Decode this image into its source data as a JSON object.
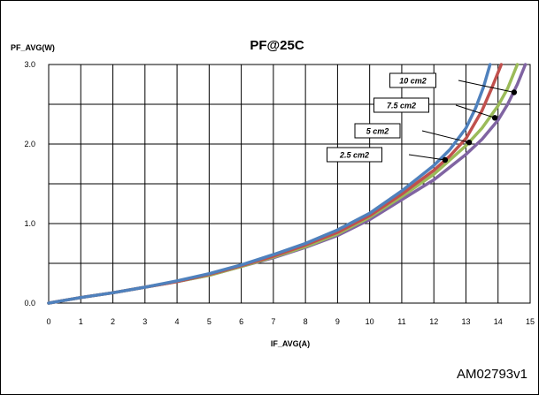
{
  "chart_data": {
    "type": "line",
    "title": "PF@25C",
    "xlabel": "IF_AVG(A)",
    "ylabel": "PF_AVG(W)",
    "xlim": [
      0,
      15
    ],
    "ylim": [
      0,
      3.0
    ],
    "x_ticks": [
      "0",
      "1",
      "2",
      "3",
      "4",
      "5",
      "6",
      "7",
      "8",
      "9",
      "10",
      "11",
      "12",
      "13",
      "14",
      "15"
    ],
    "y_ticks": [
      "0.0",
      "1.0",
      "2.0",
      "3.0"
    ],
    "grid": true,
    "series": [
      {
        "name": "2.5 cm2",
        "color": "#8064a2",
        "x": [
          0,
          1,
          2,
          3,
          4,
          5,
          6,
          7,
          8,
          9,
          10,
          11,
          12,
          13,
          13.5,
          14,
          14.3,
          14.6,
          14.85
        ],
        "y": [
          0,
          0.07,
          0.13,
          0.2,
          0.27,
          0.35,
          0.46,
          0.57,
          0.7,
          0.85,
          1.05,
          1.3,
          1.55,
          1.87,
          2.06,
          2.3,
          2.5,
          2.75,
          3.0
        ]
      },
      {
        "name": "5 cm2",
        "color": "#9bbb59",
        "x": [
          0,
          1,
          2,
          3,
          4,
          5,
          6,
          7,
          8,
          9,
          10,
          11,
          12,
          13,
          13.5,
          14,
          14.3,
          14.6
        ],
        "y": [
          0,
          0.07,
          0.13,
          0.2,
          0.27,
          0.35,
          0.46,
          0.58,
          0.71,
          0.87,
          1.08,
          1.34,
          1.62,
          1.98,
          2.2,
          2.48,
          2.7,
          3.0
        ]
      },
      {
        "name": "7.5 cm2",
        "color": "#c0504d",
        "x": [
          0,
          1,
          2,
          3,
          4,
          5,
          6,
          7,
          8,
          9,
          10,
          11,
          12,
          12.5,
          13,
          13.5,
          13.8,
          14.1
        ],
        "y": [
          0,
          0.07,
          0.13,
          0.2,
          0.27,
          0.36,
          0.47,
          0.59,
          0.73,
          0.89,
          1.1,
          1.37,
          1.67,
          1.85,
          2.07,
          2.42,
          2.7,
          3.0
        ]
      },
      {
        "name": "10 cm2",
        "color": "#4f81bd",
        "x": [
          0,
          1,
          2,
          3,
          4,
          5,
          6,
          7,
          8,
          9,
          10,
          11,
          12,
          12.5,
          13,
          13.3,
          13.55,
          13.75
        ],
        "y": [
          0,
          0.07,
          0.13,
          0.2,
          0.28,
          0.37,
          0.48,
          0.61,
          0.75,
          0.92,
          1.13,
          1.41,
          1.73,
          1.93,
          2.2,
          2.45,
          2.72,
          3.0
        ]
      }
    ],
    "annotations": [
      {
        "text": "10 cm2",
        "x": 14.5,
        "y": 2.65
      },
      {
        "text": "7.5 cm2",
        "x": 13.9,
        "y": 2.33
      },
      {
        "text": "5 cm2",
        "x": 13.1,
        "y": 2.02
      },
      {
        "text": "2.5 cm2",
        "x": 12.35,
        "y": 1.8
      }
    ]
  },
  "footer_code": "AM02793v1"
}
